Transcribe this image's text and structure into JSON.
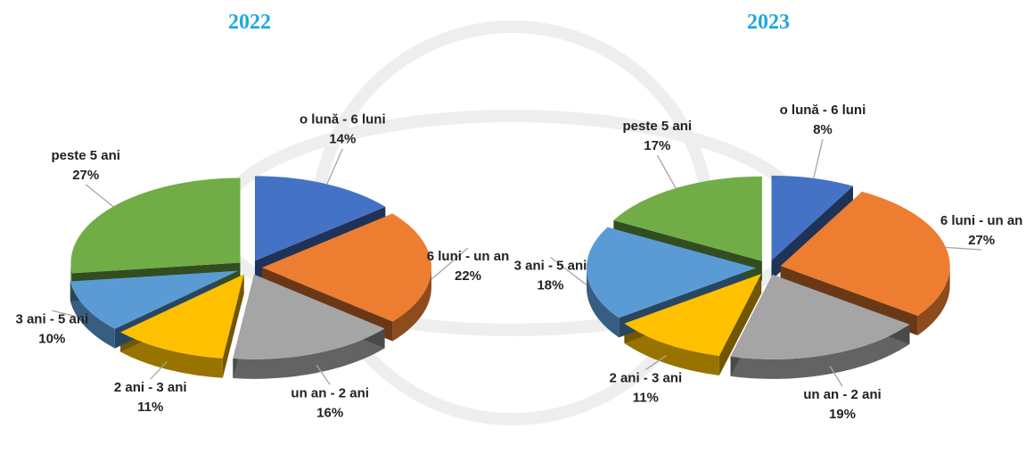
{
  "chart_data": [
    {
      "type": "pie",
      "title": "2022",
      "categories": [
        "o lună - 6 luni",
        "6 luni - un an",
        "un an - 2 ani",
        "2 ani - 3 ani",
        "3 ani - 5 ani",
        "peste 5 ani"
      ],
      "values": [
        14,
        22,
        16,
        11,
        10,
        27
      ],
      "value_labels": [
        "14%",
        "22%",
        "16%",
        "11%",
        "10%",
        "27%"
      ],
      "colors": [
        "#4472c4",
        "#ed7d31",
        "#a5a5a5",
        "#ffc000",
        "#5b9bd5",
        "#70ad47"
      ]
    },
    {
      "type": "pie",
      "title": "2023",
      "categories": [
        "o lună - 6 luni",
        "6 luni - un an",
        "un an - 2 ani",
        "2 ani - 3 ani",
        "3 ani - 5 ani",
        "peste 5 ani"
      ],
      "values": [
        8,
        27,
        19,
        11,
        18,
        17
      ],
      "value_labels": [
        "8%",
        "27%",
        "19%",
        "11%",
        "18%",
        "17%"
      ],
      "colors": [
        "#4472c4",
        "#ed7d31",
        "#a5a5a5",
        "#ffc000",
        "#5b9bd5",
        "#70ad47"
      ]
    }
  ]
}
